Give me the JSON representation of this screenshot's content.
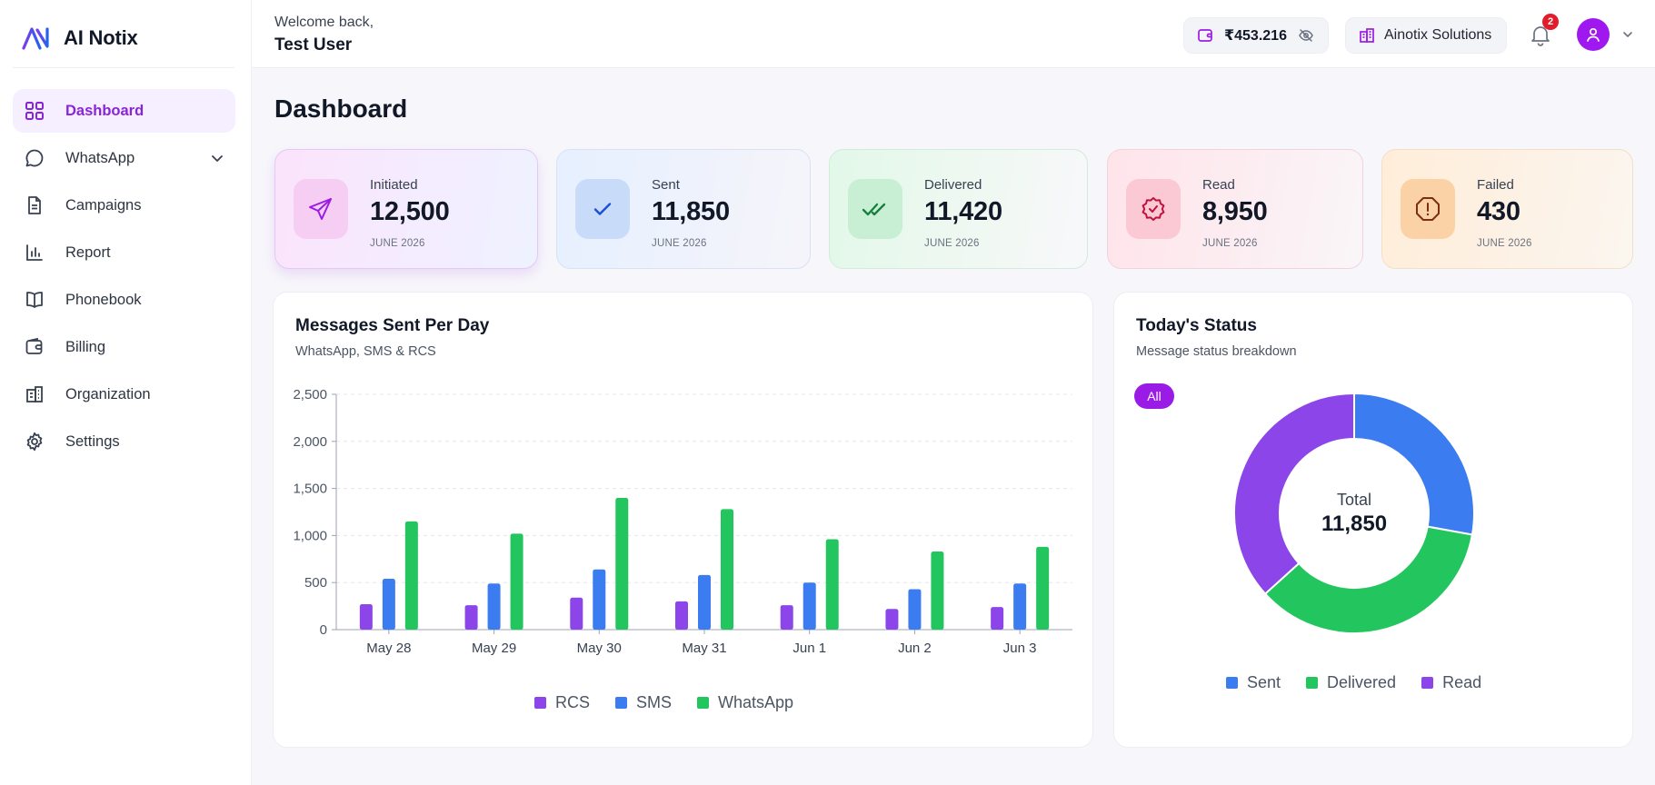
{
  "brand": {
    "name": "AI Notix"
  },
  "sidebar": {
    "items": [
      {
        "label": "Dashboard",
        "icon": "grid-icon",
        "active": true
      },
      {
        "label": "WhatsApp",
        "icon": "chat-bubble-icon",
        "has_submenu": true
      },
      {
        "label": "Campaigns",
        "icon": "document-icon"
      },
      {
        "label": "Report",
        "icon": "bar-chart-icon"
      },
      {
        "label": "Phonebook",
        "icon": "book-icon"
      },
      {
        "label": "Billing",
        "icon": "wallet-icon"
      },
      {
        "label": "Organization",
        "icon": "building-icon"
      },
      {
        "label": "Settings",
        "icon": "gear-icon"
      }
    ]
  },
  "header": {
    "welcome": "Welcome back,",
    "user": "Test User",
    "balance": "₹453.216",
    "organization": "Ainotix Solutions",
    "notifications": "2"
  },
  "page": {
    "title": "Dashboard"
  },
  "stats": [
    {
      "label": "Initiated",
      "value": "12,500",
      "date": "JUNE 2026",
      "icon": "send-icon",
      "accent": "#9b1be6"
    },
    {
      "label": "Sent",
      "value": "11,850",
      "date": "JUNE 2026",
      "icon": "check-icon",
      "accent": "#1d4ed8"
    },
    {
      "label": "Delivered",
      "value": "11,420",
      "date": "JUNE 2026",
      "icon": "double-check-icon",
      "accent": "#15803d"
    },
    {
      "label": "Read",
      "value": "8,950",
      "date": "JUNE 2026",
      "icon": "badge-check-icon",
      "accent": "#be123c"
    },
    {
      "label": "Failed",
      "value": "430",
      "date": "JUNE 2026",
      "icon": "alert-octagon-icon",
      "accent": "#b45309"
    }
  ],
  "messages_chart": {
    "title": "Messages Sent Per Day",
    "subtitle": "WhatsApp, SMS & RCS"
  },
  "status_chart": {
    "title": "Today's Status",
    "subtitle": "Message status breakdown",
    "filter": "All",
    "center_label": "Total",
    "center_value": "11,850"
  },
  "chart_data": [
    {
      "type": "bar",
      "categories": [
        "May 28",
        "May 29",
        "May 30",
        "May 31",
        "Jun 1",
        "Jun 2",
        "Jun 3"
      ],
      "series": [
        {
          "name": "RCS",
          "color": "#8b45e8",
          "values": [
            270,
            260,
            340,
            300,
            260,
            220,
            240
          ]
        },
        {
          "name": "SMS",
          "color": "#3b7cf0",
          "values": [
            540,
            490,
            640,
            580,
            500,
            430,
            490
          ]
        },
        {
          "name": "WhatsApp",
          "color": "#22c55e",
          "values": [
            1150,
            1020,
            1400,
            1280,
            960,
            830,
            880
          ]
        }
      ],
      "ylim": [
        0,
        2500
      ],
      "yticks": [
        0,
        500,
        1000,
        1500,
        2000,
        2500
      ],
      "ytick_labels": [
        "0",
        "500",
        "1,000",
        "1,500",
        "2,000",
        "2,500"
      ],
      "grid": true,
      "legend": "bottom"
    },
    {
      "type": "pie",
      "labels": [
        "Sent",
        "Delivered",
        "Read"
      ],
      "colors": [
        "#3b7cf0",
        "#22c55e",
        "#8b45e8"
      ],
      "values": [
        3300,
        4200,
        4350
      ],
      "donut": true,
      "legend": "bottom"
    }
  ]
}
